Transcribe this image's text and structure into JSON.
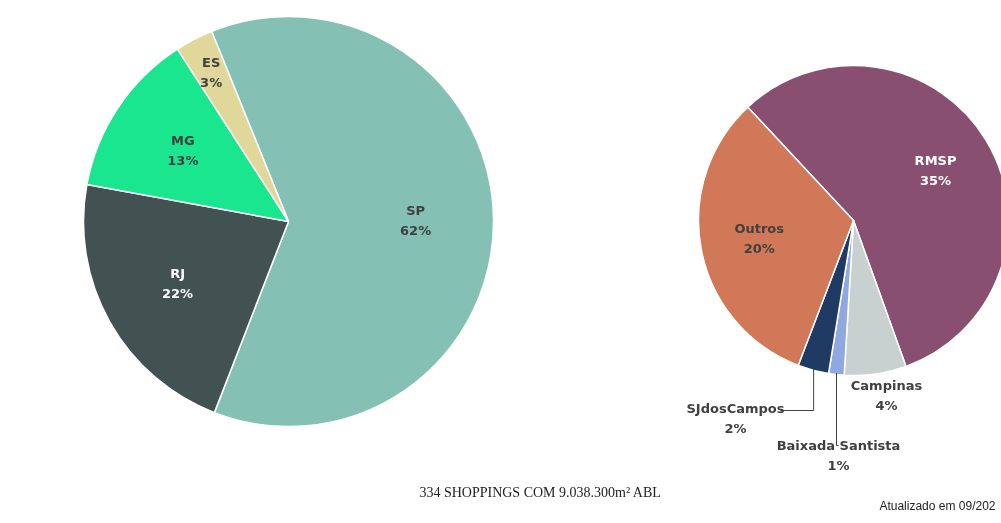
{
  "chart_data": [
    {
      "type": "pie",
      "categories": [
        "SP",
        "RJ",
        "MG",
        "ES"
      ],
      "values": [
        62,
        22,
        13,
        3
      ],
      "value_labels": [
        "62%",
        "22%",
        "13%",
        "3%"
      ],
      "colors": [
        "#84c1b4",
        "#425252",
        "#19e68e",
        "#dfd89a"
      ]
    },
    {
      "type": "pie",
      "categories": [
        "RMSP",
        "Campinas",
        "Baixada Santista",
        "SJdosCampos",
        "Outros"
      ],
      "values": [
        35,
        4,
        1,
        2,
        20
      ],
      "value_labels": [
        "35%",
        "4%",
        "1%",
        "2%",
        "20%"
      ],
      "colors": [
        "#894f70",
        "#c9d0d0",
        "#8fa9e0",
        "#1f3a63",
        "#d07858"
      ],
      "annotations": [
        "334 SHOPPINGS COM 9.038.300m² ABL",
        "Atualizado em 09/202"
      ]
    }
  ]
}
